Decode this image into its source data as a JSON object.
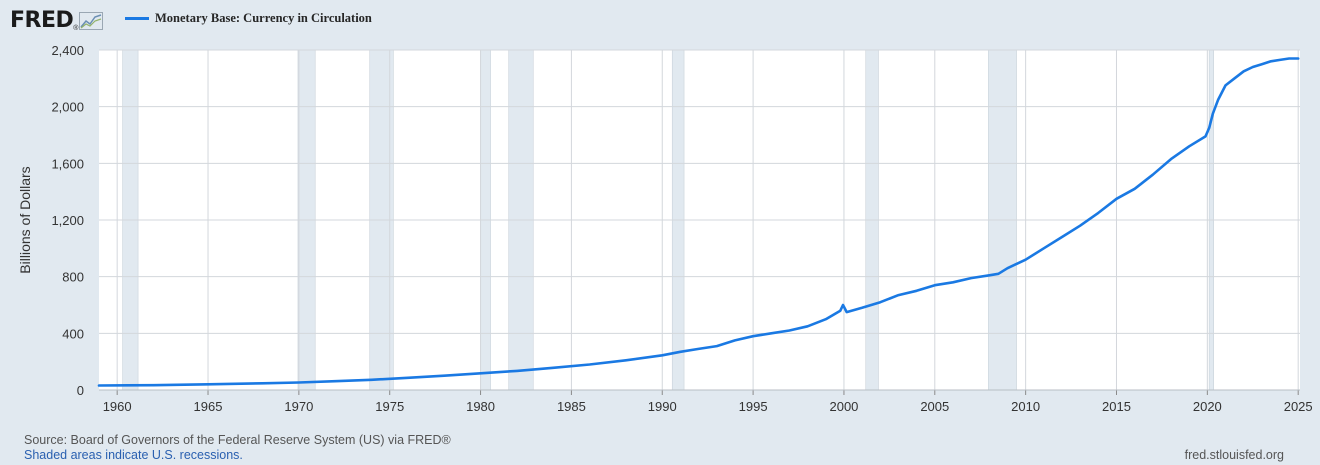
{
  "header": {
    "brand": "FRED",
    "brand_reg": "®",
    "legend_label": "Monetary Base: Currency in Circulation",
    "legend_color": "#1a79e3"
  },
  "footer": {
    "source": "Source: Board of Governors of the Federal Reserve System (US) via FRED®",
    "recession_note": "Shaded areas indicate U.S. recessions.",
    "site": "fred.stlouisfed.org"
  },
  "chart_data": {
    "type": "line",
    "title": "Monetary Base: Currency in Circulation",
    "xlabel": "",
    "ylabel": "Billions of Dollars",
    "xlim": [
      1959.0,
      2025.1
    ],
    "ylim": [
      0,
      2400
    ],
    "yticks": [
      0,
      400,
      800,
      1200,
      1600,
      2000,
      2400
    ],
    "ytick_labels": [
      "0",
      "400",
      "800",
      "1,200",
      "1,600",
      "2,000",
      "2,400"
    ],
    "xticks": [
      1960,
      1965,
      1970,
      1975,
      1980,
      1985,
      1990,
      1995,
      2000,
      2005,
      2010,
      2015,
      2020,
      2025
    ],
    "xtick_labels": [
      "1960",
      "1965",
      "1970",
      "1975",
      "1980",
      "1985",
      "1990",
      "1995",
      "2000",
      "2005",
      "2010",
      "2015",
      "2020",
      "2025"
    ],
    "grid": true,
    "recession_shading_color": "#e1e9f0",
    "recessions": [
      [
        1960.3,
        1961.15
      ],
      [
        1969.95,
        1970.9
      ],
      [
        1973.9,
        1975.2
      ],
      [
        1980.0,
        1980.55
      ],
      [
        1981.55,
        1982.9
      ],
      [
        1990.55,
        1991.2
      ],
      [
        2001.2,
        2001.9
      ],
      [
        2007.95,
        2009.5
      ],
      [
        2020.1,
        2020.35
      ]
    ],
    "series": [
      {
        "name": "Monetary Base: Currency in Circulation",
        "color": "#1a79e3",
        "x": [
          1959.0,
          1962.0,
          1965.0,
          1968.0,
          1970.0,
          1972.0,
          1974.0,
          1976.0,
          1978.0,
          1980.0,
          1982.0,
          1984.0,
          1986.0,
          1988.0,
          1990.0,
          1991.0,
          1992.0,
          1993.0,
          1994.0,
          1995.0,
          1996.0,
          1997.0,
          1998.0,
          1999.0,
          1999.8,
          1999.95,
          2000.15,
          2001.0,
          2002.0,
          2003.0,
          2004.0,
          2005.0,
          2006.0,
          2007.0,
          2008.0,
          2008.5,
          2009.0,
          2010.0,
          2011.0,
          2012.0,
          2013.0,
          2014.0,
          2015.0,
          2016.0,
          2017.0,
          2018.0,
          2019.0,
          2019.9,
          2020.1,
          2020.3,
          2020.6,
          2021.0,
          2021.5,
          2022.0,
          2022.5,
          2023.0,
          2023.5,
          2024.0,
          2024.5,
          2025.0
        ],
        "values": [
          32,
          34,
          40,
          47,
          53,
          62,
          72,
          86,
          101,
          118,
          135,
          157,
          180,
          210,
          245,
          270,
          290,
          310,
          350,
          380,
          400,
          420,
          450,
          500,
          560,
          600,
          550,
          580,
          620,
          670,
          700,
          740,
          760,
          790,
          810,
          820,
          860,
          920,
          1000,
          1080,
          1160,
          1250,
          1350,
          1420,
          1520,
          1630,
          1720,
          1790,
          1850,
          1950,
          2050,
          2150,
          2200,
          2250,
          2280,
          2300,
          2320,
          2330,
          2340,
          2340
        ]
      }
    ]
  }
}
